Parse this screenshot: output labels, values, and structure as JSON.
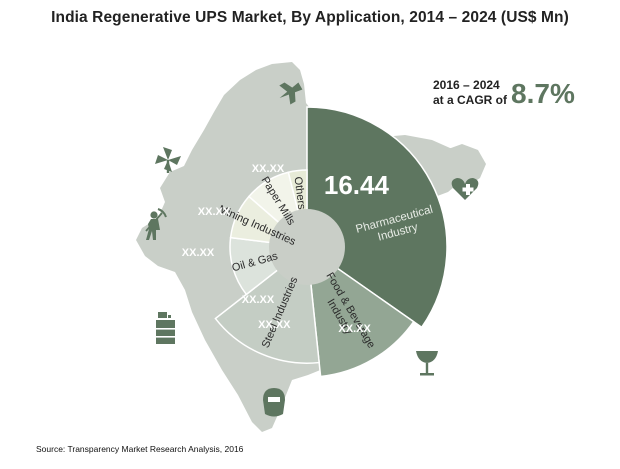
{
  "title": "India Regenerative UPS Market, By Application, 2014 – 2024 (US$ Mn)",
  "cagr": {
    "line1": "2016 – 2024",
    "line2": "at a CAGR of",
    "value": "8.7%"
  },
  "source": "Source: Transparency Market Research Analysis, 2016",
  "colors": {
    "map": "#c9cfc8",
    "pharma": "#5e7660",
    "food": "#93a694",
    "steel": "#c4cdc4",
    "oil": "#dce3dc",
    "mining": "#ebeedf",
    "paper": "#f2f4ea",
    "others": "#e7ebd7",
    "hub": "#c9cec7",
    "icon": "#5e7660"
  },
  "icons": [
    "plane-icon",
    "windmill-icon",
    "heart-plus-icon",
    "miner-icon",
    "oil-barrel-icon",
    "wine-glass-icon",
    "welding-mask-icon"
  ],
  "chart_data": {
    "type": "pie",
    "title": "India Regenerative UPS Market, By Application, 2014 – 2024 (US$ Mn)",
    "categories": [
      "Pharmaceutical Industry",
      "Food & Beverage Industry",
      "Steel Industries",
      "Oil & Gas",
      "Mining Industries",
      "Paper Mills",
      "Others"
    ],
    "value_labels": [
      "16.44",
      "XX.XX",
      "XX.XX",
      "XX.XX",
      "XX.XX",
      "XX.XX",
      "XX.XX"
    ],
    "relative_size": [
      1.0,
      0.93,
      0.83,
      0.55,
      0.55,
      0.55,
      0.55
    ],
    "sweep_deg": [
      125,
      49,
      58,
      45,
      34,
      35,
      14
    ]
  }
}
